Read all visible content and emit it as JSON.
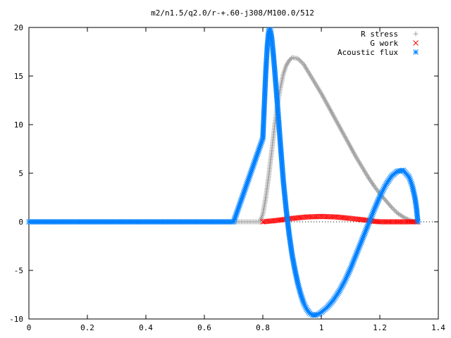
{
  "chart_data": {
    "type": "scatter",
    "title": "m2/n1.5/q2.0/r-+.60-j308/M100.0/512",
    "xlabel": "",
    "ylabel": "",
    "xlim": [
      0,
      1.4
    ],
    "ylim": [
      -10,
      20
    ],
    "x_ticks": [
      "0",
      "0.2",
      "0.4",
      "0.6",
      "0.8",
      "1",
      "1.2",
      "1.4"
    ],
    "y_ticks": [
      "-10",
      "-5",
      "0",
      "5",
      "10",
      "15",
      "20"
    ],
    "x_tick_values": [
      0,
      0.2,
      0.4,
      0.6,
      0.8,
      1.0,
      1.2,
      1.4
    ],
    "y_tick_values": [
      -10,
      -5,
      0,
      5,
      10,
      15,
      20
    ],
    "grid": false,
    "legend_position": "top-right",
    "series": [
      {
        "name": "R stress",
        "marker": "plus",
        "color": "#a0a0a0",
        "x": [
          0.0,
          0.1,
          0.2,
          0.3,
          0.4,
          0.5,
          0.6,
          0.7,
          0.79,
          0.8,
          0.81,
          0.82,
          0.83,
          0.84,
          0.85,
          0.86,
          0.87,
          0.88,
          0.89,
          0.9,
          0.92,
          0.94,
          0.96,
          0.98,
          1.0,
          1.02,
          1.04,
          1.06,
          1.08,
          1.1,
          1.12,
          1.14,
          1.16,
          1.18,
          1.2,
          1.22,
          1.24,
          1.26,
          1.28,
          1.3,
          1.32
        ],
        "y": [
          0,
          0,
          0,
          0,
          0,
          0,
          0,
          0,
          0,
          0.8,
          2.5,
          4.7,
          7.2,
          9.8,
          12.0,
          13.8,
          15.2,
          16.1,
          16.6,
          16.9,
          16.8,
          16.2,
          15.2,
          14.2,
          13.2,
          12.1,
          11.0,
          9.9,
          8.8,
          7.7,
          6.6,
          5.6,
          4.6,
          3.7,
          2.9,
          2.2,
          1.5,
          0.9,
          0.5,
          0.2,
          0.0
        ]
      },
      {
        "name": "G work",
        "marker": "cross",
        "color": "#ff0000",
        "x": [
          0.8,
          0.85,
          0.9,
          0.95,
          1.0,
          1.05,
          1.1,
          1.15,
          1.18,
          1.2,
          1.25,
          1.3,
          1.33
        ],
        "y": [
          0.0,
          0.15,
          0.35,
          0.5,
          0.55,
          0.5,
          0.35,
          0.18,
          0.05,
          0.0,
          0.0,
          0.0,
          0.0
        ]
      },
      {
        "name": "Acoustic flux",
        "marker": "star",
        "color": "#0080ff",
        "x": [
          0.0,
          0.1,
          0.2,
          0.3,
          0.4,
          0.5,
          0.6,
          0.7,
          0.8,
          0.81,
          0.815,
          0.82,
          0.825,
          0.83,
          0.835,
          0.84,
          0.85,
          0.86,
          0.87,
          0.88,
          0.89,
          0.9,
          0.91,
          0.92,
          0.93,
          0.94,
          0.95,
          0.96,
          0.97,
          0.98,
          0.99,
          1.0,
          1.02,
          1.04,
          1.06,
          1.08,
          1.1,
          1.12,
          1.14,
          1.16,
          1.18,
          1.2,
          1.22,
          1.24,
          1.26,
          1.28,
          1.3,
          1.31,
          1.32,
          1.325,
          1.33
        ],
        "y": [
          0,
          0,
          0,
          0,
          0,
          0,
          0,
          0,
          8.6,
          15.4,
          18.0,
          19.6,
          19.8,
          19.0,
          17.5,
          15.8,
          12.0,
          8.0,
          4.2,
          1.2,
          -1.3,
          -3.4,
          -5.0,
          -6.4,
          -7.5,
          -8.4,
          -9.0,
          -9.4,
          -9.6,
          -9.6,
          -9.5,
          -9.3,
          -8.8,
          -8.1,
          -7.2,
          -6.1,
          -4.8,
          -3.3,
          -1.8,
          -0.3,
          1.2,
          2.6,
          3.8,
          4.7,
          5.2,
          5.3,
          4.6,
          3.8,
          2.5,
          1.5,
          0.0
        ]
      }
    ]
  }
}
